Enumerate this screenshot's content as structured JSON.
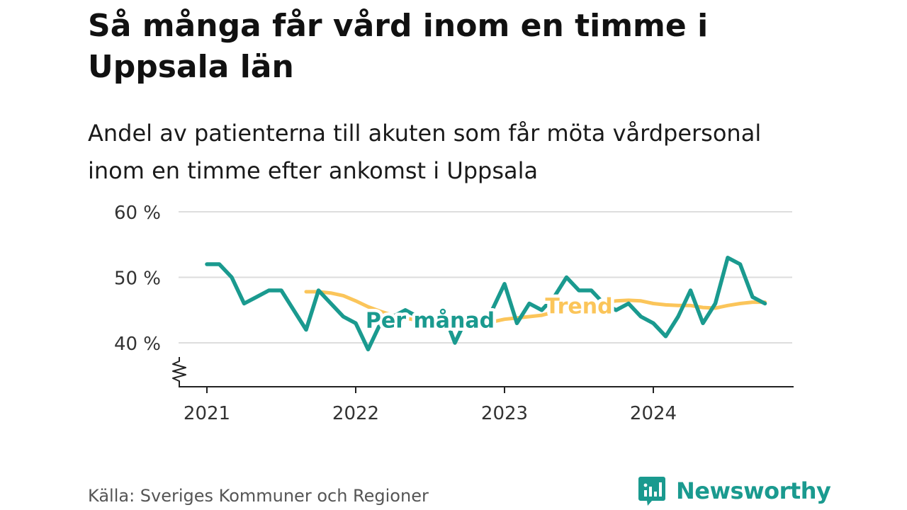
{
  "header": {
    "title": "Så många får vård inom en timme i Uppsala län",
    "subtitle": "Andel av patienterna till akuten som får möta vårdpersonal inom en timme efter ankomst i Uppsala"
  },
  "footer": {
    "source": "Källa: Sveriges Kommuner och Regioner",
    "brand": "Newsworthy",
    "brand_icon": "newsworthy-logo-icon"
  },
  "chart_data": {
    "type": "line",
    "title": "Så många får vård inom en timme i Uppsala län",
    "subtitle": "Andel av patienterna till akuten som får möta vårdpersonal inom en timme efter ankomst i Uppsala",
    "xlabel": "",
    "ylabel": "",
    "ylim": [
      35,
      60
    ],
    "y_ticks": [
      {
        "value": 40,
        "label": "40 %"
      },
      {
        "value": 50,
        "label": "50 %"
      },
      {
        "value": 60,
        "label": "60 %"
      }
    ],
    "x_ticks": [
      {
        "value": 2021,
        "label": "2021"
      },
      {
        "value": 2022,
        "label": "2022"
      },
      {
        "value": 2023,
        "label": "2023"
      },
      {
        "value": 2024,
        "label": "2024"
      }
    ],
    "y_axis_break": true,
    "grid": true,
    "series": [
      {
        "name": "Per månad",
        "color": "#1a9a8f",
        "points": [
          [
            "2021-01",
            52
          ],
          [
            "2021-02",
            52
          ],
          [
            "2021-03",
            50
          ],
          [
            "2021-04",
            46
          ],
          [
            "2021-05",
            47
          ],
          [
            "2021-06",
            48
          ],
          [
            "2021-07",
            48
          ],
          [
            "2021-08",
            45
          ],
          [
            "2021-09",
            42
          ],
          [
            "2021-10",
            48
          ],
          [
            "2021-11",
            46
          ],
          [
            "2021-12",
            44
          ],
          [
            "2022-01",
            43
          ],
          [
            "2022-02",
            39
          ],
          [
            "2022-03",
            43
          ],
          [
            "2022-04",
            44
          ],
          [
            "2022-05",
            45
          ],
          [
            "2022-06",
            44
          ],
          [
            "2022-07",
            43
          ],
          [
            "2022-08",
            45
          ],
          [
            "2022-09",
            40
          ],
          [
            "2022-10",
            44
          ],
          [
            "2022-11",
            43
          ],
          [
            "2022-12",
            45
          ],
          [
            "2023-01",
            49
          ],
          [
            "2023-02",
            43
          ],
          [
            "2023-03",
            46
          ],
          [
            "2023-04",
            45
          ],
          [
            "2023-05",
            47
          ],
          [
            "2023-06",
            50
          ],
          [
            "2023-07",
            48
          ],
          [
            "2023-08",
            48
          ],
          [
            "2023-09",
            46
          ],
          [
            "2023-10",
            45
          ],
          [
            "2023-11",
            46
          ],
          [
            "2023-12",
            44
          ],
          [
            "2024-01",
            43
          ],
          [
            "2024-02",
            41
          ],
          [
            "2024-03",
            44
          ],
          [
            "2024-04",
            48
          ],
          [
            "2024-05",
            43
          ],
          [
            "2024-06",
            46
          ],
          [
            "2024-07",
            53
          ],
          [
            "2024-08",
            52
          ],
          [
            "2024-09",
            47
          ],
          [
            "2024-10",
            46
          ]
        ]
      },
      {
        "name": "Trend",
        "color": "#fbc55a",
        "points": [
          [
            "2021-09",
            47.8
          ],
          [
            "2021-10",
            47.8
          ],
          [
            "2021-11",
            47.6
          ],
          [
            "2021-12",
            47.2
          ],
          [
            "2022-01",
            46.4
          ],
          [
            "2022-02",
            45.5
          ],
          [
            "2022-03",
            44.8
          ],
          [
            "2022-04",
            44.2
          ],
          [
            "2022-05",
            43.8
          ],
          [
            "2022-06",
            43.4
          ],
          [
            "2022-07",
            43.0
          ],
          [
            "2022-08",
            42.9
          ],
          [
            "2022-09",
            42.8
          ],
          [
            "2022-10",
            42.7
          ],
          [
            "2022-11",
            42.8
          ],
          [
            "2022-12",
            43.2
          ],
          [
            "2023-01",
            43.6
          ],
          [
            "2023-02",
            43.8
          ],
          [
            "2023-03",
            44.0
          ],
          [
            "2023-04",
            44.2
          ],
          [
            "2023-05",
            44.7
          ],
          [
            "2023-06",
            45.3
          ],
          [
            "2023-07",
            45.7
          ],
          [
            "2023-08",
            46.0
          ],
          [
            "2023-09",
            46.2
          ],
          [
            "2023-10",
            46.4
          ],
          [
            "2023-11",
            46.5
          ],
          [
            "2023-12",
            46.4
          ],
          [
            "2024-01",
            46.0
          ],
          [
            "2024-02",
            45.8
          ],
          [
            "2024-03",
            45.7
          ],
          [
            "2024-04",
            45.7
          ],
          [
            "2024-05",
            45.4
          ],
          [
            "2024-06",
            45.3
          ],
          [
            "2024-07",
            45.7
          ],
          [
            "2024-08",
            46.0
          ],
          [
            "2024-09",
            46.2
          ],
          [
            "2024-10",
            46.2
          ]
        ]
      }
    ],
    "annotations": [
      {
        "text": "Per månad",
        "series": "Per månad",
        "at": "2022-07",
        "y": 43.6
      },
      {
        "text": "Trend",
        "series": "Trend",
        "at": "2023-07",
        "y": 45.8
      }
    ]
  }
}
